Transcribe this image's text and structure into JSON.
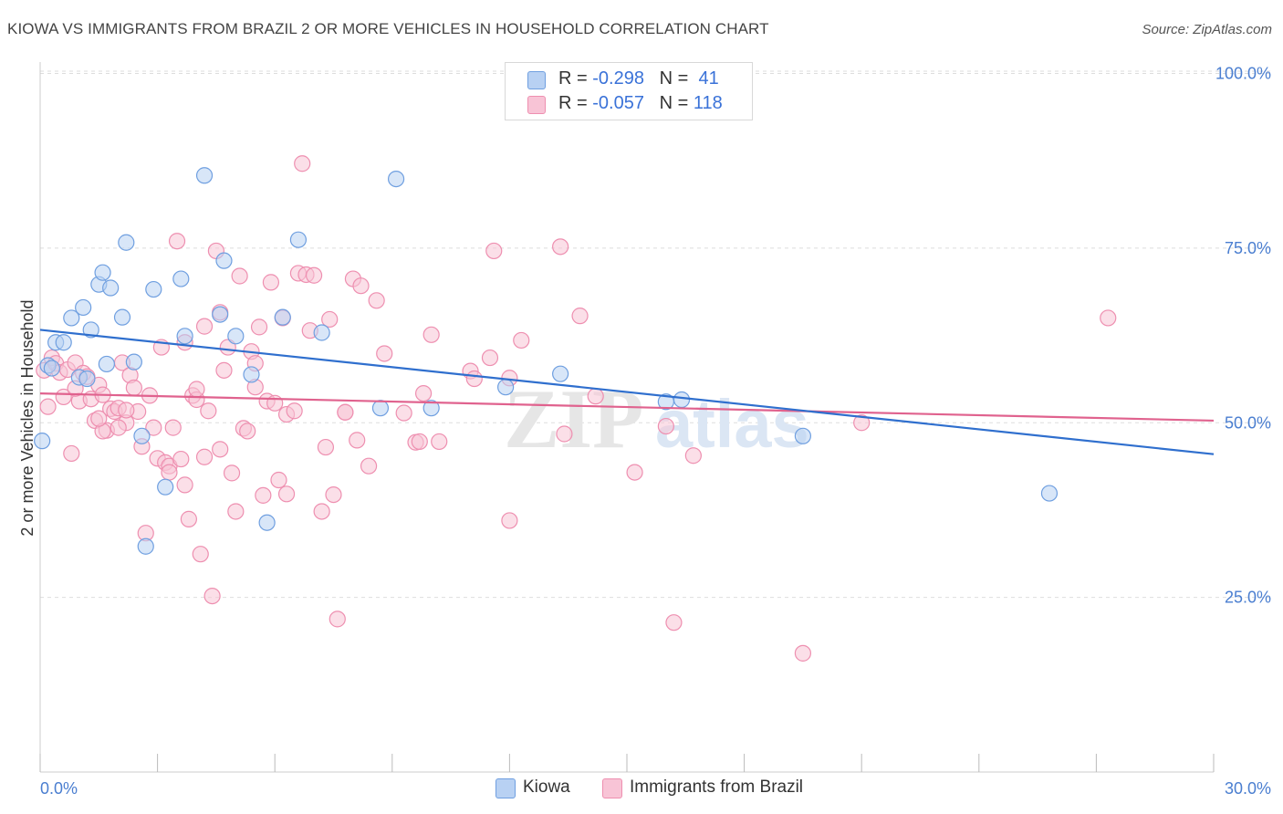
{
  "header": {
    "title": "KIOWA VS IMMIGRANTS FROM BRAZIL 2 OR MORE VEHICLES IN HOUSEHOLD CORRELATION CHART",
    "source": "Source: ZipAtlas.com"
  },
  "legend": {
    "kiowa": {
      "r_label": "R =",
      "r_value": "-0.298",
      "n_label": "N =",
      "n_value": "41"
    },
    "brazil": {
      "r_label": "R =",
      "r_value": "-0.057",
      "n_label": "N =",
      "n_value": "118"
    }
  },
  "watermark": {
    "zip": "ZIP",
    "atlas": "atlas"
  },
  "colors": {
    "kiowa_fill": "#b8d1f3",
    "kiowa_stroke": "#6f9fe0",
    "kiowa_line": "#2f6fce",
    "brazil_fill": "#f8c4d6",
    "brazil_stroke": "#ee8fb0",
    "brazil_line": "#e0628e",
    "tick_label": "#4a7ed0",
    "grid": "#dddddd"
  },
  "chart_data": {
    "type": "scatter",
    "title": "KIOWA VS IMMIGRANTS FROM BRAZIL 2 OR MORE VEHICLES IN HOUSEHOLD CORRELATION CHART",
    "xlabel": "",
    "ylabel": "2 or more Vehicles in Household",
    "xlim": [
      0,
      30
    ],
    "ylim": [
      0,
      105
    ],
    "x_tick_labels": [
      "0.0%",
      "30.0%"
    ],
    "y_ticks": [
      25,
      50,
      75,
      100
    ],
    "y_tick_labels": [
      "25.0%",
      "50.0%",
      "75.0%",
      "100.0%"
    ],
    "grid": true,
    "legend_position": "top-center",
    "series": [
      {
        "name": "Kiowa",
        "points": [
          [
            0.05,
            47.4
          ],
          [
            0.2,
            58.2
          ],
          [
            0.4,
            61.5
          ],
          [
            0.6,
            61.5
          ],
          [
            0.8,
            65.0
          ],
          [
            1.0,
            56.5
          ],
          [
            1.1,
            66.5
          ],
          [
            1.2,
            56.3
          ],
          [
            1.3,
            63.3
          ],
          [
            1.5,
            69.8
          ],
          [
            1.6,
            71.5
          ],
          [
            1.7,
            58.4
          ],
          [
            1.8,
            69.3
          ],
          [
            2.1,
            65.1
          ],
          [
            2.2,
            75.8
          ],
          [
            2.4,
            58.7
          ],
          [
            2.6,
            48.1
          ],
          [
            2.7,
            32.3
          ],
          [
            2.9,
            69.1
          ],
          [
            3.2,
            40.8
          ],
          [
            3.6,
            70.6
          ],
          [
            3.7,
            62.4
          ],
          [
            4.2,
            85.4
          ],
          [
            4.6,
            65.5
          ],
          [
            4.7,
            73.2
          ],
          [
            5.0,
            62.4
          ],
          [
            5.4,
            56.9
          ],
          [
            5.8,
            35.7
          ],
          [
            6.2,
            65.1
          ],
          [
            6.6,
            76.2
          ],
          [
            7.2,
            62.9
          ],
          [
            8.7,
            52.1
          ],
          [
            9.1,
            84.9
          ],
          [
            10.0,
            52.1
          ],
          [
            11.9,
            55.1
          ],
          [
            13.3,
            57.0
          ],
          [
            16.0,
            53.0
          ],
          [
            16.4,
            53.3
          ],
          [
            19.5,
            48.1
          ],
          [
            25.8,
            39.9
          ],
          [
            0.3,
            57.8
          ]
        ],
        "trend": [
          [
            0,
            63.3
          ],
          [
            30,
            45.5
          ]
        ]
      },
      {
        "name": "Immigrants from Brazil",
        "points": [
          [
            0.1,
            57.5
          ],
          [
            0.3,
            59.3
          ],
          [
            0.4,
            58.5
          ],
          [
            0.5,
            57.2
          ],
          [
            0.6,
            53.7
          ],
          [
            0.7,
            57.6
          ],
          [
            0.8,
            45.6
          ],
          [
            0.9,
            58.6
          ],
          [
            1.0,
            53.1
          ],
          [
            1.1,
            57.1
          ],
          [
            1.2,
            56.6
          ],
          [
            1.3,
            53.4
          ],
          [
            1.4,
            50.3
          ],
          [
            1.5,
            55.4
          ],
          [
            1.6,
            54.0
          ],
          [
            1.7,
            48.9
          ],
          [
            1.8,
            52.0
          ],
          [
            1.9,
            51.6
          ],
          [
            2.0,
            52.1
          ],
          [
            2.1,
            58.6
          ],
          [
            2.2,
            50.0
          ],
          [
            2.3,
            56.8
          ],
          [
            2.4,
            55.0
          ],
          [
            2.5,
            51.6
          ],
          [
            2.6,
            46.6
          ],
          [
            2.7,
            34.2
          ],
          [
            2.8,
            53.9
          ],
          [
            2.9,
            49.3
          ],
          [
            3.0,
            44.9
          ],
          [
            3.1,
            60.8
          ],
          [
            3.2,
            44.3
          ],
          [
            3.3,
            43.8
          ],
          [
            3.4,
            49.3
          ],
          [
            3.5,
            76.0
          ],
          [
            3.6,
            44.8
          ],
          [
            3.7,
            61.5
          ],
          [
            3.8,
            36.2
          ],
          [
            3.9,
            53.9
          ],
          [
            4.0,
            53.3
          ],
          [
            4.1,
            31.2
          ],
          [
            4.2,
            45.1
          ],
          [
            4.3,
            51.7
          ],
          [
            4.4,
            25.2
          ],
          [
            4.5,
            74.6
          ],
          [
            4.6,
            65.8
          ],
          [
            4.7,
            57.5
          ],
          [
            4.8,
            60.8
          ],
          [
            4.9,
            42.8
          ],
          [
            5.0,
            37.3
          ],
          [
            5.1,
            71.0
          ],
          [
            5.2,
            49.2
          ],
          [
            5.3,
            48.8
          ],
          [
            5.4,
            60.2
          ],
          [
            5.5,
            58.5
          ],
          [
            5.6,
            63.7
          ],
          [
            5.7,
            39.6
          ],
          [
            5.8,
            53.1
          ],
          [
            5.9,
            70.1
          ],
          [
            6.0,
            52.8
          ],
          [
            6.1,
            41.8
          ],
          [
            6.2,
            65.0
          ],
          [
            6.3,
            51.2
          ],
          [
            6.5,
            51.7
          ],
          [
            6.6,
            71.4
          ],
          [
            6.7,
            87.1
          ],
          [
            6.8,
            71.2
          ],
          [
            6.9,
            63.2
          ],
          [
            7.0,
            71.1
          ],
          [
            7.2,
            37.3
          ],
          [
            7.3,
            46.5
          ],
          [
            7.4,
            64.8
          ],
          [
            7.5,
            39.7
          ],
          [
            7.6,
            21.9
          ],
          [
            7.8,
            51.5
          ],
          [
            8.0,
            70.6
          ],
          [
            8.1,
            47.5
          ],
          [
            8.2,
            69.6
          ],
          [
            8.4,
            43.8
          ],
          [
            8.6,
            67.5
          ],
          [
            8.8,
            59.9
          ],
          [
            9.3,
            51.4
          ],
          [
            9.6,
            47.2
          ],
          [
            9.8,
            54.2
          ],
          [
            10.0,
            62.6
          ],
          [
            10.2,
            47.3
          ],
          [
            11.0,
            57.4
          ],
          [
            11.1,
            56.3
          ],
          [
            11.5,
            59.3
          ],
          [
            11.6,
            74.6
          ],
          [
            12.0,
            56.4
          ],
          [
            12.0,
            36.0
          ],
          [
            12.3,
            61.8
          ],
          [
            13.3,
            75.2
          ],
          [
            13.4,
            48.4
          ],
          [
            13.8,
            65.3
          ],
          [
            14.2,
            53.8
          ],
          [
            15.2,
            42.9
          ],
          [
            16.0,
            49.5
          ],
          [
            16.2,
            21.4
          ],
          [
            16.7,
            45.3
          ],
          [
            19.5,
            17.0
          ],
          [
            21.0,
            50.0
          ],
          [
            27.3,
            65.0
          ],
          [
            6.3,
            39.8
          ],
          [
            3.3,
            42.9
          ],
          [
            0.2,
            52.3
          ],
          [
            1.6,
            48.8
          ],
          [
            4.0,
            54.8
          ],
          [
            3.7,
            41.1
          ],
          [
            2.0,
            49.3
          ],
          [
            5.5,
            55.1
          ],
          [
            2.2,
            51.8
          ],
          [
            0.9,
            54.9
          ],
          [
            1.5,
            50.6
          ],
          [
            4.6,
            46.2
          ],
          [
            4.2,
            63.8
          ],
          [
            9.7,
            47.3
          ],
          [
            7.8,
            51.5
          ]
        ],
        "trend": [
          [
            0,
            54.2
          ],
          [
            30,
            50.3
          ]
        ]
      }
    ]
  }
}
